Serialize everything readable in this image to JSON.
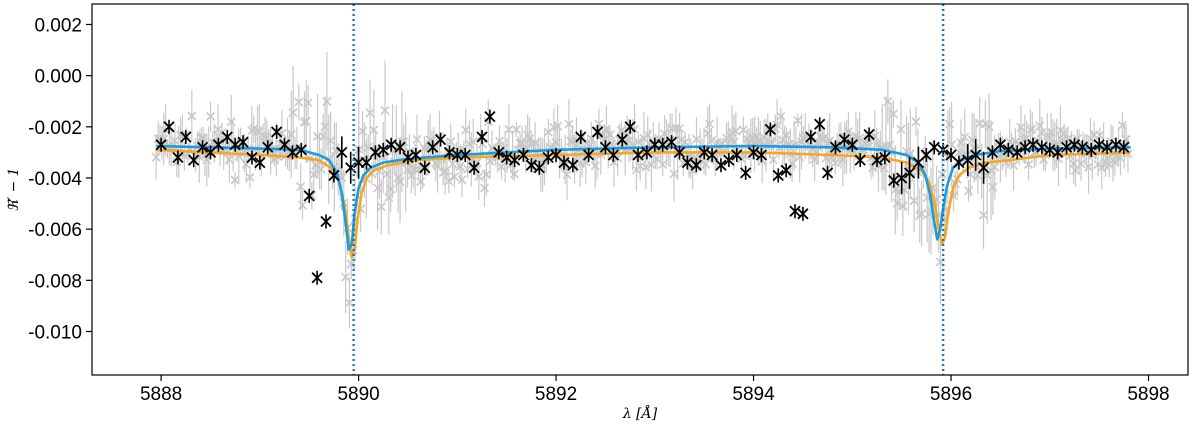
{
  "chart_data": {
    "type": "scatter",
    "title": "",
    "xlabel": "λ [Å]",
    "ylabel": "ℜ′ − 1",
    "xlim": [
      5887.3,
      5898.4
    ],
    "ylim": [
      -0.0117,
      0.0028
    ],
    "xticks": [
      5888,
      5890,
      5892,
      5894,
      5896,
      5898
    ],
    "xtick_labels": [
      "5888",
      "5890",
      "5892",
      "5894",
      "5896",
      "5898"
    ],
    "yticks": [
      0.002,
      0.0,
      -0.002,
      -0.004,
      -0.006,
      -0.008,
      -0.01
    ],
    "ytick_labels": [
      "0.002",
      "0.000",
      "-0.002",
      "-0.004",
      "-0.006",
      "-0.008",
      "-0.010"
    ],
    "grid": false,
    "reference_lines": [
      5889.95,
      5895.92
    ],
    "colors": {
      "raw": "#c8c8c8",
      "binned": "#000000",
      "model_blue": "#1a9be0",
      "model_orange": "#f5a623",
      "reference": "#1f77b4"
    },
    "series": [
      {
        "key": "binned",
        "x": [
          5888.0,
          5888.08,
          5888.17,
          5888.25,
          5888.33,
          5888.42,
          5888.5,
          5888.58,
          5888.67,
          5888.75,
          5888.83,
          5888.92,
          5889.0,
          5889.08,
          5889.17,
          5889.25,
          5889.33,
          5889.42,
          5889.5,
          5889.58,
          5889.67,
          5889.75,
          5889.83,
          5889.92,
          5890.0,
          5890.08,
          5890.17,
          5890.25,
          5890.33,
          5890.42,
          5890.5,
          5890.58,
          5890.67,
          5890.75,
          5890.83,
          5890.92,
          5891.0,
          5891.08,
          5891.17,
          5891.25,
          5891.33,
          5891.42,
          5891.5,
          5891.58,
          5891.67,
          5891.75,
          5891.83,
          5891.92,
          5892.0,
          5892.08,
          5892.17,
          5892.25,
          5892.33,
          5892.42,
          5892.5,
          5892.58,
          5892.67,
          5892.75,
          5892.83,
          5892.92,
          5893.0,
          5893.08,
          5893.17,
          5893.25,
          5893.33,
          5893.42,
          5893.5,
          5893.58,
          5893.67,
          5893.75,
          5893.83,
          5893.92,
          5894.0,
          5894.08,
          5894.17,
          5894.25,
          5894.33,
          5894.42,
          5894.5,
          5894.58,
          5894.67,
          5894.75,
          5894.83,
          5894.92,
          5895.0,
          5895.08,
          5895.17,
          5895.25,
          5895.33,
          5895.42,
          5895.5,
          5895.58,
          5895.67,
          5895.75,
          5895.83,
          5895.92,
          5896.0,
          5896.08,
          5896.17,
          5896.25,
          5896.33,
          5896.42,
          5896.5,
          5896.58,
          5896.67,
          5896.75,
          5896.83,
          5896.92,
          5897.0,
          5897.08,
          5897.17,
          5897.25,
          5897.33,
          5897.42,
          5897.5,
          5897.58,
          5897.67,
          5897.75
        ],
        "y": [
          -0.0027,
          -0.002,
          -0.0032,
          -0.0024,
          -0.0033,
          -0.0028,
          -0.003,
          -0.0027,
          -0.0024,
          -0.0027,
          -0.0026,
          -0.0032,
          -0.0034,
          -0.0028,
          -0.0022,
          -0.0027,
          -0.003,
          -0.0029,
          -0.0047,
          -0.0079,
          -0.0057,
          -0.0039,
          -0.003,
          -0.0036,
          -0.0034,
          -0.0034,
          -0.003,
          -0.0029,
          -0.0027,
          -0.0028,
          -0.0032,
          -0.0031,
          -0.0036,
          -0.0028,
          -0.0025,
          -0.003,
          -0.0031,
          -0.0031,
          -0.0036,
          -0.0024,
          -0.0016,
          -0.003,
          -0.0032,
          -0.0033,
          -0.0031,
          -0.0035,
          -0.0036,
          -0.0032,
          -0.0031,
          -0.0034,
          -0.0035,
          -0.0024,
          -0.0031,
          -0.0022,
          -0.0028,
          -0.0031,
          -0.0025,
          -0.002,
          -0.0031,
          -0.003,
          -0.0027,
          -0.0027,
          -0.0026,
          -0.003,
          -0.0034,
          -0.0035,
          -0.003,
          -0.0031,
          -0.0035,
          -0.0033,
          -0.0031,
          -0.0038,
          -0.003,
          -0.0031,
          -0.0021,
          -0.0039,
          -0.0037,
          -0.0053,
          -0.0054,
          -0.0024,
          -0.0019,
          -0.0038,
          -0.0028,
          -0.0025,
          -0.0027,
          -0.0033,
          -0.0023,
          -0.0033,
          -0.0032,
          -0.0041,
          -0.004,
          -0.0038,
          -0.0034,
          -0.0031,
          -0.0028,
          -0.0029,
          -0.0031,
          -0.0034,
          -0.0033,
          -0.0031,
          -0.0036,
          -0.003,
          -0.0027,
          -0.0029,
          -0.003,
          -0.0028,
          -0.0027,
          -0.0028,
          -0.0029,
          -0.003,
          -0.0028,
          -0.0027,
          -0.0028,
          -0.0029,
          -0.0027,
          -0.0028,
          -0.0027,
          -0.0028
        ]
      },
      {
        "key": "model_blue",
        "line": true,
        "x": [
          5887.95,
          5888.5,
          5889.0,
          5889.4,
          5889.6,
          5889.7,
          5889.78,
          5889.83,
          5889.87,
          5889.9,
          5889.93,
          5889.96,
          5890.0,
          5890.05,
          5890.12,
          5890.25,
          5890.5,
          5891.0,
          5892.0,
          5893.0,
          5894.0,
          5894.8,
          5895.3,
          5895.55,
          5895.67,
          5895.74,
          5895.79,
          5895.83,
          5895.86,
          5895.89,
          5895.92,
          5895.96,
          5896.02,
          5896.1,
          5896.25,
          5896.5,
          5897.0,
          5897.82
        ],
        "y": [
          -0.00275,
          -0.0028,
          -0.00285,
          -0.0029,
          -0.0031,
          -0.0033,
          -0.0038,
          -0.0046,
          -0.0058,
          -0.0068,
          -0.0066,
          -0.0054,
          -0.0044,
          -0.0039,
          -0.0036,
          -0.0034,
          -0.00325,
          -0.0031,
          -0.0029,
          -0.0028,
          -0.00275,
          -0.0028,
          -0.0029,
          -0.0031,
          -0.0034,
          -0.0039,
          -0.0047,
          -0.0057,
          -0.0064,
          -0.006,
          -0.0052,
          -0.0043,
          -0.0036,
          -0.0033,
          -0.0031,
          -0.00295,
          -0.00285,
          -0.0028
        ]
      },
      {
        "key": "model_orange",
        "line": true,
        "x": [
          5887.95,
          5888.5,
          5889.0,
          5889.4,
          5889.6,
          5889.72,
          5889.8,
          5889.86,
          5889.9,
          5889.93,
          5889.96,
          5889.99,
          5890.03,
          5890.08,
          5890.15,
          5890.3,
          5890.6,
          5891.0,
          5892.0,
          5893.0,
          5894.0,
          5894.8,
          5895.3,
          5895.55,
          5895.7,
          5895.78,
          5895.84,
          5895.88,
          5895.91,
          5895.94,
          5895.97,
          5896.02,
          5896.08,
          5896.18,
          5896.35,
          5896.6,
          5897.0,
          5897.82
        ],
        "y": [
          -0.0029,
          -0.003,
          -0.0031,
          -0.0032,
          -0.0033,
          -0.0036,
          -0.0041,
          -0.0051,
          -0.0063,
          -0.0071,
          -0.0068,
          -0.0056,
          -0.0046,
          -0.004,
          -0.0037,
          -0.0035,
          -0.0033,
          -0.0032,
          -0.0031,
          -0.003,
          -0.003,
          -0.0031,
          -0.0032,
          -0.0034,
          -0.0037,
          -0.0042,
          -0.0051,
          -0.0061,
          -0.0066,
          -0.0063,
          -0.0054,
          -0.0044,
          -0.0039,
          -0.0036,
          -0.0034,
          -0.0033,
          -0.0031,
          -0.003
        ]
      }
    ]
  }
}
